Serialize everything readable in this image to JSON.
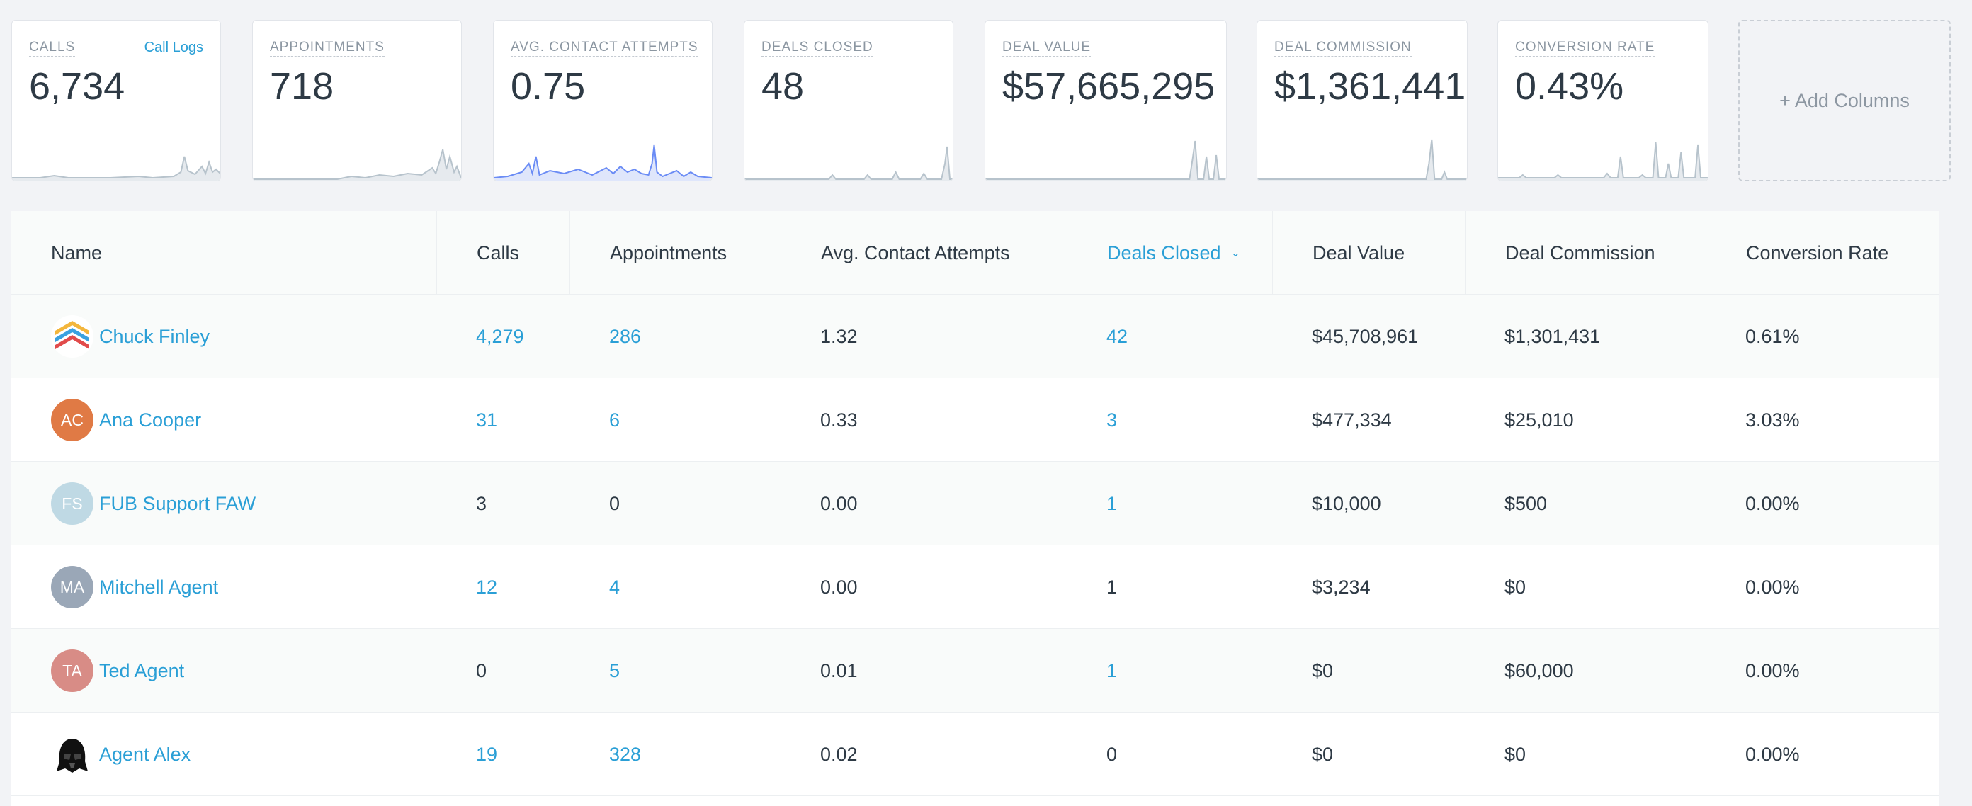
{
  "metrics": [
    {
      "label": "CALLS",
      "value": "6,734",
      "link": "Call Logs"
    },
    {
      "label": "APPOINTMENTS",
      "value": "718"
    },
    {
      "label": "AVG. CONTACT ATTEMPTS",
      "value": "0.75"
    },
    {
      "label": "DEALS CLOSED",
      "value": "48"
    },
    {
      "label": "DEAL VALUE",
      "value": "$57,665,295"
    },
    {
      "label": "DEAL COMMISSION",
      "value": "$1,361,441"
    },
    {
      "label": "CONVERSION RATE",
      "value": "0.43%"
    }
  ],
  "add_columns_label": "+ Add Columns",
  "table": {
    "headers": [
      "Name",
      "Calls",
      "Appointments",
      "Avg. Contact Attempts",
      "Deals Closed",
      "Deal Value",
      "Deal Commission",
      "Conversion Rate"
    ],
    "sorted_column": "Deals Closed",
    "rows": [
      {
        "name": "Chuck Finley",
        "avatar": "logo-icon",
        "initials": "",
        "calls": "4,279",
        "appointments": "286",
        "avg_contact_attempts": "1.32",
        "deals_closed": "42",
        "deal_value": "$45,708,961",
        "deal_commission": "$1,301,431",
        "conversion_rate": "0.61%"
      },
      {
        "name": "Ana Cooper",
        "avatar": "initials",
        "initials": "AC",
        "calls": "31",
        "appointments": "6",
        "avg_contact_attempts": "0.33",
        "deals_closed": "3",
        "deal_value": "$477,334",
        "deal_commission": "$25,010",
        "conversion_rate": "3.03%"
      },
      {
        "name": "FUB Support FAW",
        "avatar": "initials",
        "initials": "FS",
        "calls": "3",
        "appointments": "0",
        "avg_contact_attempts": "0.00",
        "deals_closed": "1",
        "deal_value": "$10,000",
        "deal_commission": "$500",
        "conversion_rate": "0.00%"
      },
      {
        "name": "Mitchell Agent",
        "avatar": "initials",
        "initials": "MA",
        "calls": "12",
        "appointments": "4",
        "avg_contact_attempts": "0.00",
        "deals_closed": "1",
        "deal_value": "$3,234",
        "deal_commission": "$0",
        "conversion_rate": "0.00%"
      },
      {
        "name": "Ted Agent",
        "avatar": "initials",
        "initials": "TA",
        "calls": "0",
        "appointments": "5",
        "avg_contact_attempts": "0.01",
        "deals_closed": "1",
        "deal_value": "$0",
        "deal_commission": "$60,000",
        "conversion_rate": "0.00%"
      },
      {
        "name": "Agent Alex",
        "avatar": "helmet-icon",
        "initials": "",
        "calls": "19",
        "appointments": "328",
        "avg_contact_attempts": "0.02",
        "deals_closed": "0",
        "deal_value": "$0",
        "deal_commission": "$0",
        "conversion_rate": "0.00%"
      }
    ]
  },
  "colors": {
    "link": "#2a9fd6",
    "text": "#2e3a45",
    "sparkline_gray": "#b7c3cc",
    "sparkline_blue": "#6b8cf5",
    "avatar_ac": "#e07a45",
    "avatar_fs": "#bfd9e4",
    "avatar_ma": "#9aa7b7",
    "avatar_ta": "#d88c86"
  }
}
